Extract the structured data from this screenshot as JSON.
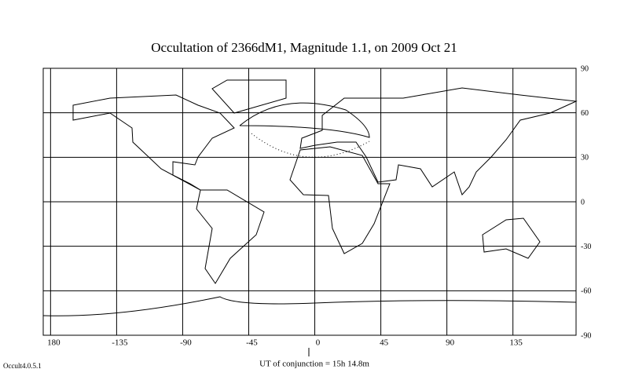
{
  "chart_data": {
    "type": "map",
    "title": "Occultation  of  2366dM1,      Magnitude 1.1,    on  2009 Oct 21",
    "xlim": [
      -185,
      178
    ],
    "ylim": [
      -90,
      90
    ],
    "xticks": [
      {
        "value": -180,
        "label": "180"
      },
      -135,
      -90,
      -45,
      0,
      45,
      90,
      135
    ],
    "yticks": [
      90,
      60,
      30,
      0,
      -30,
      -60,
      -90
    ],
    "grid": true,
    "caption": "UT of conjunction = 15h 14.8m",
    "version": "Occult4.0.5.1"
  }
}
